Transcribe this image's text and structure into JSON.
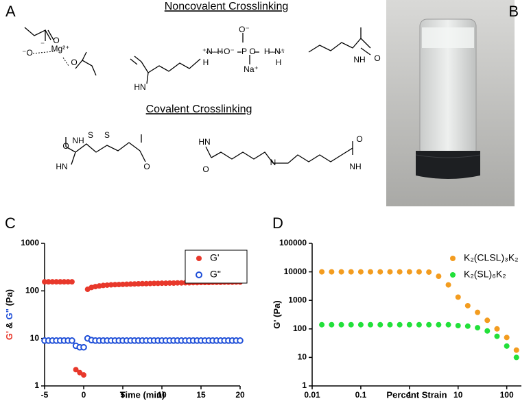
{
  "panel_a": {
    "letter": "A",
    "noncovalent_title": "Noncovalent Crosslinking",
    "covalent_title": "Covalent Crosslinking",
    "atoms": [
      "⁻O",
      "Mg²⁺",
      "O",
      "⁻",
      "O",
      "HN",
      "⁺N–H",
      "H",
      "O⁻",
      "P",
      "O",
      "O⁻",
      "Na⁺",
      "H–N⁺",
      "H",
      "NH",
      "O",
      "O",
      "NH",
      "S",
      "S",
      "HN",
      "O",
      "HN",
      "O",
      "N",
      "NH",
      "O"
    ]
  },
  "panel_b": {
    "letter": "B"
  },
  "chart_data": [
    {
      "type": "scatter",
      "panel": "C",
      "xlabel": "Time (min)",
      "ylabel_parts": [
        {
          "text": "G'",
          "color": "#e8382b"
        },
        {
          "text": " & ",
          "color": "#000000"
        },
        {
          "text": "G\"",
          "color": "#1f4fd8"
        },
        {
          "text": " (Pa)",
          "color": "#000000"
        }
      ],
      "xscale": "linear",
      "yscale": "log",
      "xlim": [
        -5,
        20
      ],
      "ylim": [
        1,
        1000
      ],
      "xticks": [
        -5,
        0,
        5,
        10,
        15,
        20
      ],
      "yticks": [
        1,
        10,
        100,
        1000
      ],
      "legend": "upper right",
      "x": [
        -5,
        -4.5,
        -4,
        -3.5,
        -3,
        -2.5,
        -2,
        -1.5,
        -1,
        -0.5,
        0,
        0.5,
        1,
        1.5,
        2,
        2.5,
        3,
        3.5,
        4,
        4.5,
        5,
        5.5,
        6,
        6.5,
        7,
        7.5,
        8,
        8.5,
        9,
        9.5,
        10,
        10.5,
        11,
        11.5,
        12,
        12.5,
        13,
        13.5,
        14,
        14.5,
        15,
        15.5,
        16,
        16.5,
        17,
        17.5,
        18,
        18.5,
        19,
        19.5,
        20
      ],
      "series": [
        {
          "name": "G'",
          "color": "#e8382b",
          "marker": "filled",
          "values": [
            155,
            155,
            155,
            155,
            155,
            155,
            155,
            155,
            2.2,
            1.9,
            1.7,
            108,
            118,
            123,
            127,
            130,
            132,
            134,
            135,
            136,
            137,
            138,
            139,
            140,
            141,
            142,
            142,
            143,
            144,
            144,
            145,
            145,
            146,
            146,
            147,
            147,
            148,
            148,
            149,
            149,
            150,
            150,
            150,
            151,
            151,
            151,
            152,
            152,
            152,
            153,
            153
          ]
        },
        {
          "name": "G\"",
          "color": "#1f4fd8",
          "marker": "open",
          "values": [
            9,
            9,
            9,
            9,
            9,
            9,
            9,
            9,
            7,
            6.5,
            6.5,
            10,
            9.2,
            9,
            9,
            9,
            9,
            9,
            9,
            9,
            9,
            9,
            9,
            9,
            9,
            9,
            9,
            9,
            9,
            9,
            9,
            9,
            9,
            9,
            9,
            9,
            9,
            9,
            9,
            9,
            9,
            9,
            9,
            9,
            9,
            9,
            9,
            9,
            9,
            9,
            9
          ]
        }
      ]
    },
    {
      "type": "scatter",
      "panel": "D",
      "xlabel": "Percent Strain",
      "ylabel_parts": [
        {
          "text": "G' (Pa)",
          "color": "#000000"
        }
      ],
      "xscale": "log",
      "yscale": "log",
      "xlim": [
        0.01,
        200
      ],
      "ylim": [
        1,
        100000
      ],
      "xticks": [
        0.01,
        0.1,
        1,
        10,
        100
      ],
      "yticks": [
        1,
        10,
        100,
        1000,
        10000,
        100000
      ],
      "legend": "upper right",
      "x": [
        0.0158,
        0.0251,
        0.0398,
        0.0631,
        0.1,
        0.158,
        0.251,
        0.398,
        0.631,
        1,
        1.58,
        2.51,
        3.98,
        6.31,
        10,
        15.8,
        25.1,
        39.8,
        63.1,
        100,
        158
      ],
      "series": [
        {
          "name": "K₂(CLSL)₃K₂",
          "color": "#f39c1f",
          "marker": "filled",
          "values": [
            10000,
            10000,
            10000,
            10000,
            10000,
            10000,
            10000,
            10000,
            10000,
            10000,
            10000,
            9800,
            7000,
            3500,
            1300,
            650,
            380,
            200,
            100,
            50,
            18
          ]
        },
        {
          "name": "K₂(SL)₆K₂",
          "color": "#22e03a",
          "marker": "filled",
          "values": [
            140,
            140,
            140,
            140,
            140,
            140,
            140,
            140,
            140,
            140,
            140,
            140,
            140,
            140,
            130,
            125,
            110,
            85,
            55,
            25,
            10
          ]
        }
      ]
    }
  ]
}
